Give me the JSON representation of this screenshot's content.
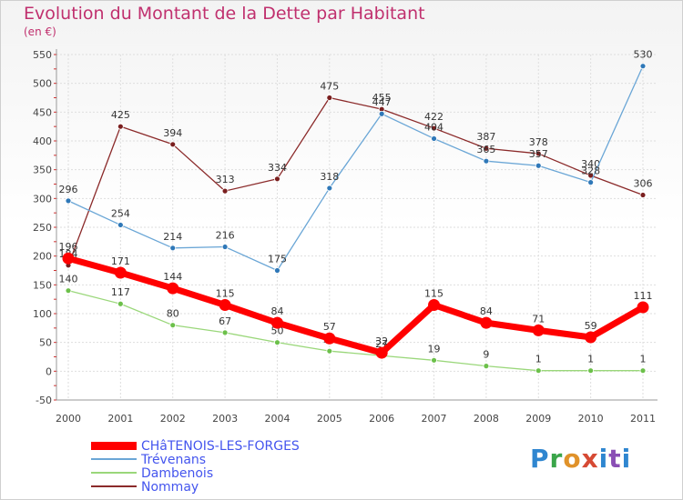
{
  "chart_data": {
    "type": "line",
    "title": "Evolution du Montant de la Dette par Habitant",
    "subtitle": "(en €)",
    "xlabel": "",
    "ylabel": "",
    "categories": [
      "2000",
      "2001",
      "2002",
      "2003",
      "2004",
      "2005",
      "2006",
      "2007",
      "2008",
      "2009",
      "2010",
      "2011"
    ],
    "ylim": [
      -50,
      550
    ],
    "yticks": [
      -50,
      0,
      50,
      100,
      150,
      200,
      250,
      300,
      350,
      400,
      450,
      500,
      550
    ],
    "grid": true,
    "series": [
      {
        "name": "Nommay",
        "color": "#8b2a2a",
        "point_color": "#7a1f1f",
        "values": [
          184,
          425,
          394,
          313,
          334,
          475,
          455,
          422,
          387,
          378,
          340,
          306
        ]
      },
      {
        "name": "Trévenans",
        "color": "#6aa6d6",
        "point_color": "#2f78b8",
        "values": [
          296,
          254,
          214,
          216,
          175,
          318,
          447,
          404,
          365,
          357,
          328,
          530
        ]
      },
      {
        "name": "Dambenois",
        "color": "#9ad77a",
        "point_color": "#6cc04a",
        "values": [
          140,
          117,
          80,
          67,
          50,
          35,
          27,
          19,
          9,
          1,
          1,
          1
        ]
      },
      {
        "name": "CHâTENOIS-LES-FORGES",
        "color": "#ff0000",
        "point_color": "#ff0000",
        "values": [
          196,
          171,
          144,
          115,
          84,
          57,
          32,
          115,
          84,
          71,
          59,
          111
        ]
      }
    ],
    "legend_order": [
      "CHâTENOIS-LES-FORGES",
      "Trévenans",
      "Dambenois",
      "Nommay"
    ]
  },
  "logo": {
    "letters": [
      "P",
      "r",
      "o",
      "x",
      "i",
      "t",
      "i"
    ]
  }
}
